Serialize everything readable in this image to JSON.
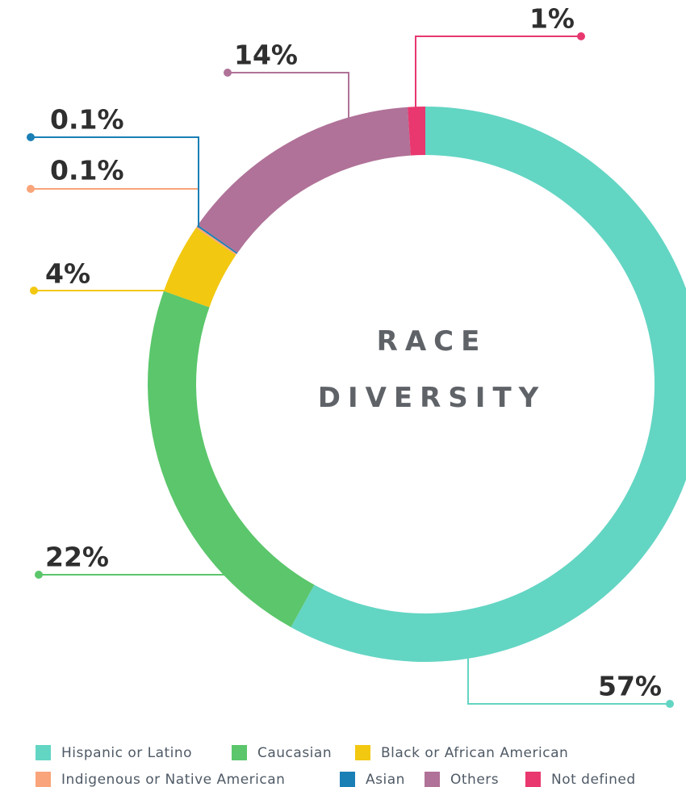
{
  "chart_data": {
    "type": "pie",
    "title": "RACE DIVERSITY",
    "categories": [
      "Hispanic or Latino",
      "Caucasian",
      "Black or African American",
      "Indigenous or Native American",
      "Asian",
      "Others",
      "Not defined"
    ],
    "values": [
      57,
      22,
      4,
      0.1,
      0.1,
      14,
      1
    ],
    "value_labels": [
      "57%",
      "22%",
      "4%",
      "0.1%",
      "0.1%",
      "14%",
      "1%"
    ],
    "colors": [
      "#63d5c3",
      "#5bc66b",
      "#f2c811",
      "#f9a47a",
      "#1a7fb5",
      "#b07298",
      "#e8386f"
    ],
    "donut": true,
    "legend": "bottom"
  }
}
